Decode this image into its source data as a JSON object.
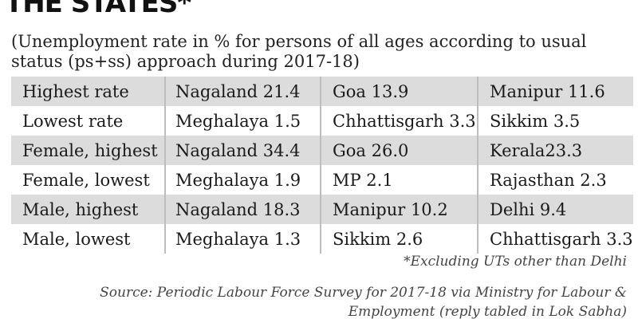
{
  "title": "THE STATES*",
  "subtitle": "(Unemployment rate in % for persons of all ages according to usual status (ps+ss) approach during 2017-18)",
  "table": {
    "rows": [
      {
        "label": "Highest rate",
        "c1": "Nagaland 21.4",
        "c2": "Goa 13.9",
        "c3": "Manipur 11.6"
      },
      {
        "label": "Lowest rate",
        "c1": "Meghalaya 1.5",
        "c2": "Chhattisgarh 3.3",
        "c3": "Sikkim 3.5"
      },
      {
        "label": "Female, highest",
        "c1": "Nagaland 34.4",
        "c2": "Goa 26.0",
        "c3": "Kerala23.3"
      },
      {
        "label": "Female, lowest",
        "c1": "Meghalaya 1.9",
        "c2": "MP 2.1",
        "c3": "Rajasthan 2.3"
      },
      {
        "label": "Male, highest",
        "c1": "Nagaland 18.3",
        "c2": "Manipur 10.2",
        "c3": "Delhi 9.4"
      },
      {
        "label": "Male, lowest",
        "c1": "Meghalaya 1.3",
        "c2": "Sikkim 2.6",
        "c3": "Chhattisgarh 3.3"
      }
    ]
  },
  "footnote": "*Excluding UTs other than Delhi",
  "source": "Source: Periodic Labour Force Survey for 2017-18 via Ministry for Labour & Employment (reply tabled in Lok Sabha)",
  "colors": {
    "shaded_row": "#dcdcdc",
    "divider": "#bdbdbd",
    "text": "#1a1a1a"
  }
}
